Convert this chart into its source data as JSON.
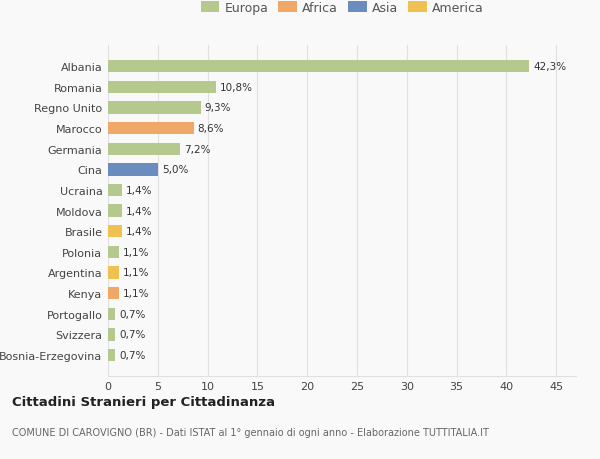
{
  "categories": [
    "Bosnia-Erzegovina",
    "Svizzera",
    "Portogallo",
    "Kenya",
    "Argentina",
    "Polonia",
    "Brasile",
    "Moldova",
    "Ucraina",
    "Cina",
    "Germania",
    "Marocco",
    "Regno Unito",
    "Romania",
    "Albania"
  ],
  "values": [
    0.7,
    0.7,
    0.7,
    1.1,
    1.1,
    1.1,
    1.4,
    1.4,
    1.4,
    5.0,
    7.2,
    8.6,
    9.3,
    10.8,
    42.3
  ],
  "labels": [
    "0,7%",
    "0,7%",
    "0,7%",
    "1,1%",
    "1,1%",
    "1,1%",
    "1,4%",
    "1,4%",
    "1,4%",
    "5,0%",
    "7,2%",
    "8,6%",
    "9,3%",
    "10,8%",
    "42,3%"
  ],
  "colors": [
    "#b5c98e",
    "#b5c98e",
    "#b5c98e",
    "#f0a868",
    "#f0c050",
    "#b5c98e",
    "#f0c050",
    "#b5c98e",
    "#b5c98e",
    "#6b8cbf",
    "#b5c98e",
    "#f0a868",
    "#b5c98e",
    "#b5c98e",
    "#b5c98e"
  ],
  "legend_names": [
    "Europa",
    "Africa",
    "Asia",
    "America"
  ],
  "legend_colors": [
    "#b5c98e",
    "#f0a868",
    "#6b8cbf",
    "#f0c050"
  ],
  "title": "Cittadini Stranieri per Cittadinanza",
  "subtitle": "COMUNE DI CAROVIGNO (BR) - Dati ISTAT al 1° gennaio di ogni anno - Elaborazione TUTTITALIA.IT",
  "xlim": [
    0,
    47
  ],
  "xticks": [
    0,
    5,
    10,
    15,
    20,
    25,
    30,
    35,
    40,
    45
  ],
  "bg_color": "#f9f9f9",
  "grid_color": "#e0e0e0",
  "bar_height": 0.6
}
